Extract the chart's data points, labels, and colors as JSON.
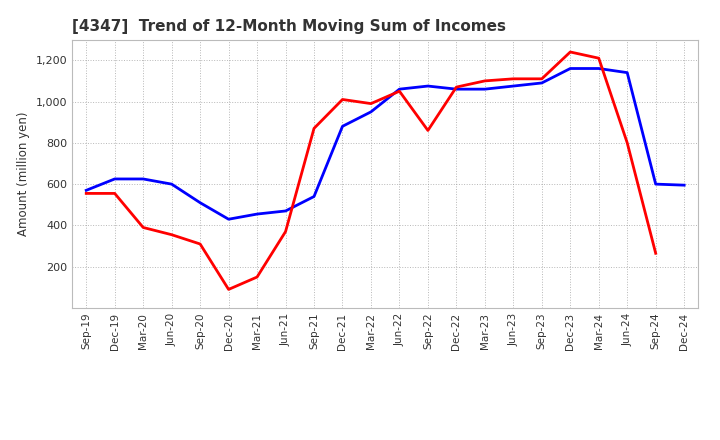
{
  "title": "[4347]  Trend of 12-Month Moving Sum of Incomes",
  "ylabel": "Amount (million yen)",
  "background_color": "#ffffff",
  "grid_color": "#999999",
  "x_labels": [
    "Sep-19",
    "Dec-19",
    "Mar-20",
    "Jun-20",
    "Sep-20",
    "Dec-20",
    "Mar-21",
    "Jun-21",
    "Sep-21",
    "Dec-21",
    "Mar-22",
    "Jun-22",
    "Sep-22",
    "Dec-22",
    "Mar-23",
    "Jun-23",
    "Sep-23",
    "Dec-23",
    "Mar-24",
    "Jun-24",
    "Sep-24",
    "Dec-24"
  ],
  "ordinary_income": [
    570,
    625,
    625,
    600,
    510,
    430,
    455,
    470,
    540,
    880,
    950,
    1060,
    1075,
    1060,
    1060,
    1075,
    1090,
    1160,
    1160,
    1140,
    600,
    595
  ],
  "net_income": [
    555,
    555,
    390,
    355,
    310,
    90,
    150,
    370,
    870,
    1010,
    990,
    1050,
    860,
    1070,
    1100,
    1110,
    1110,
    1240,
    1210,
    800,
    265,
    null
  ],
  "ordinary_color": "#0000ff",
  "net_color": "#ff0000",
  "line_width": 2.0,
  "ylim_min": 0,
  "ylim_max": 1300,
  "yticks": [
    200,
    400,
    600,
    800,
    1000,
    1200
  ],
  "title_fontsize": 11,
  "title_color": "#333333"
}
